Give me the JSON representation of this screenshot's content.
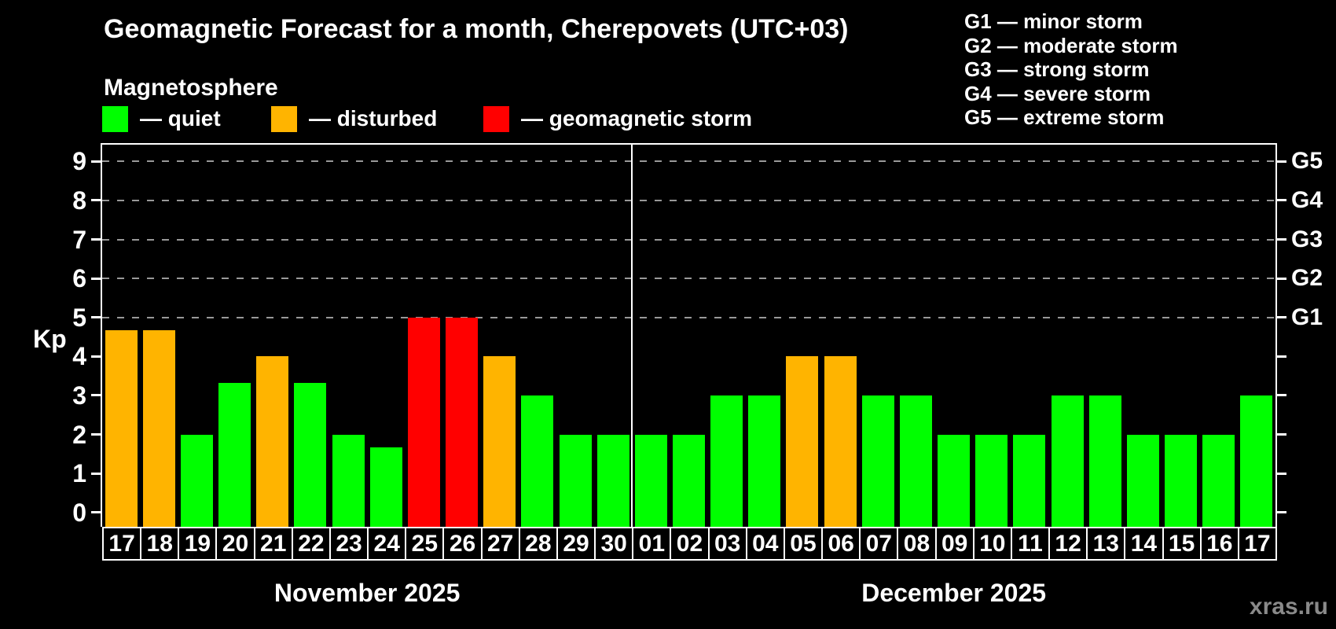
{
  "header": {
    "title": "Geomagnetic Forecast for a month, Cherepovets (UTC+03)",
    "subtitle": "Magnetosphere"
  },
  "colors": {
    "quiet": "#00ff00",
    "disturbed": "#ffb400",
    "storm": "#ff0000",
    "grid": "#999999",
    "frame": "#ffffff",
    "background": "#000000",
    "watermark": "#8a8a8a"
  },
  "status_legend": [
    {
      "status": "quiet",
      "label": "— quiet"
    },
    {
      "status": "disturbed",
      "label": "— disturbed"
    },
    {
      "status": "storm",
      "label": "— geomagnetic storm"
    }
  ],
  "g_legend": [
    "G1 — minor storm",
    "G2 — moderate storm",
    "G3 — strong storm",
    "G4 — severe storm",
    "G5 — extreme storm"
  ],
  "chart_data": {
    "type": "bar",
    "title": "Geomagnetic Forecast for a month, Cherepovets (UTC+03)",
    "ylabel": "Kp",
    "ylim": [
      0,
      9.4
    ],
    "grid": "dashed horizontal at storm levels only",
    "gridlines_at": [
      5,
      6,
      7,
      8,
      9
    ],
    "kp_ticks": [
      0,
      1,
      2,
      3,
      4,
      5,
      6,
      7,
      8,
      9
    ],
    "g_levels": [
      {
        "label": "G1",
        "kp": 5
      },
      {
        "label": "G2",
        "kp": 6
      },
      {
        "label": "G3",
        "kp": 7
      },
      {
        "label": "G4",
        "kp": 8
      },
      {
        "label": "G5",
        "kp": 9
      }
    ],
    "legend_position": "top-left",
    "months": [
      {
        "label": "November 2025",
        "days": [
          {
            "date": "17",
            "kp": 4.67,
            "status": "disturbed"
          },
          {
            "date": "18",
            "kp": 4.67,
            "status": "disturbed"
          },
          {
            "date": "19",
            "kp": 2,
            "status": "quiet"
          },
          {
            "date": "20",
            "kp": 3.33,
            "status": "quiet"
          },
          {
            "date": "21",
            "kp": 4,
            "status": "disturbed"
          },
          {
            "date": "22",
            "kp": 3.33,
            "status": "quiet"
          },
          {
            "date": "23",
            "kp": 2,
            "status": "quiet"
          },
          {
            "date": "24",
            "kp": 1.67,
            "status": "quiet"
          },
          {
            "date": "25",
            "kp": 5,
            "status": "storm"
          },
          {
            "date": "26",
            "kp": 5,
            "status": "storm"
          },
          {
            "date": "27",
            "kp": 4,
            "status": "disturbed"
          },
          {
            "date": "28",
            "kp": 3,
            "status": "quiet"
          },
          {
            "date": "29",
            "kp": 2,
            "status": "quiet"
          },
          {
            "date": "30",
            "kp": 2,
            "status": "quiet"
          }
        ]
      },
      {
        "label": "December 2025",
        "days": [
          {
            "date": "01",
            "kp": 2,
            "status": "quiet"
          },
          {
            "date": "02",
            "kp": 2,
            "status": "quiet"
          },
          {
            "date": "03",
            "kp": 3,
            "status": "quiet"
          },
          {
            "date": "04",
            "kp": 3,
            "status": "quiet"
          },
          {
            "date": "05",
            "kp": 4,
            "status": "disturbed"
          },
          {
            "date": "06",
            "kp": 4,
            "status": "disturbed"
          },
          {
            "date": "07",
            "kp": 3,
            "status": "quiet"
          },
          {
            "date": "08",
            "kp": 3,
            "status": "quiet"
          },
          {
            "date": "09",
            "kp": 2,
            "status": "quiet"
          },
          {
            "date": "10",
            "kp": 2,
            "status": "quiet"
          },
          {
            "date": "11",
            "kp": 2,
            "status": "quiet"
          },
          {
            "date": "12",
            "kp": 3,
            "status": "quiet"
          },
          {
            "date": "13",
            "kp": 3,
            "status": "quiet"
          },
          {
            "date": "14",
            "kp": 2,
            "status": "quiet"
          },
          {
            "date": "15",
            "kp": 2,
            "status": "quiet"
          },
          {
            "date": "16",
            "kp": 2,
            "status": "quiet"
          },
          {
            "date": "17",
            "kp": 3,
            "status": "quiet"
          }
        ]
      }
    ]
  },
  "footer": {
    "watermark": "xras.ru"
  }
}
